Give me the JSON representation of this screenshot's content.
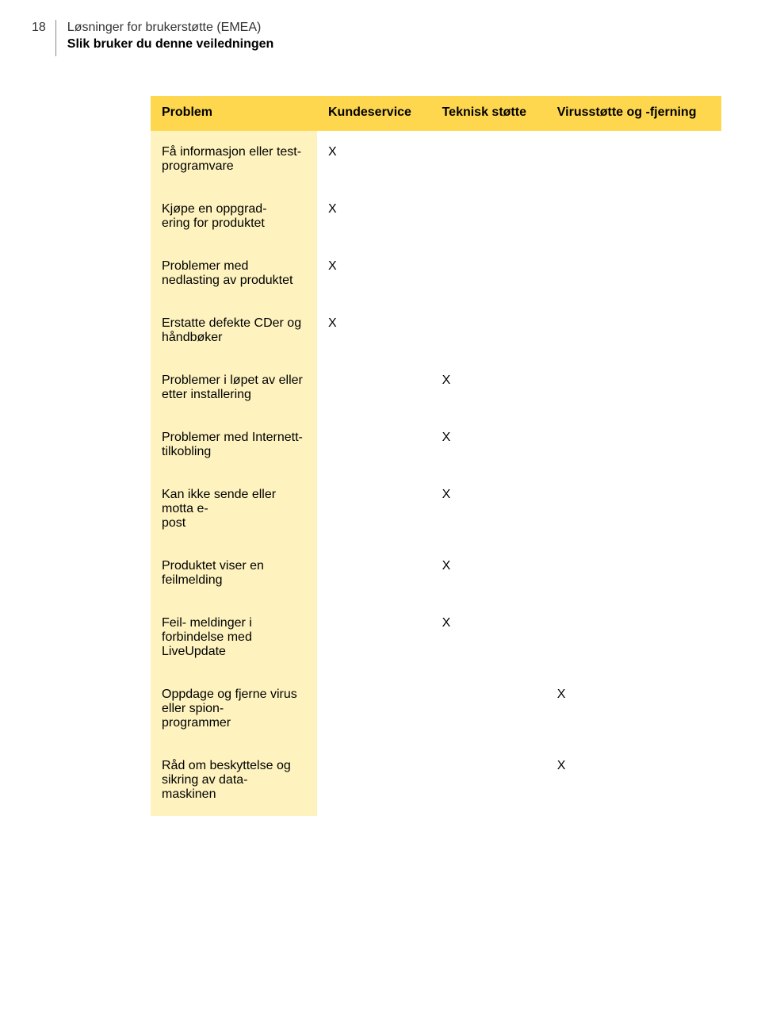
{
  "page_number": "18",
  "header_title": "Løsninger for brukerstøtte (EMEA)",
  "header_subtitle": "Slik bruker du denne veiledningen",
  "colors": {
    "header_bg": "#fed74f",
    "body_bg": "#fef3bf",
    "mark_bg": "#ffffff",
    "page_bg": "#ffffff",
    "text": "#000000"
  },
  "table": {
    "columns": [
      "Problem",
      "Kundeservice",
      "Teknisk støtte",
      "Virusstøtte og -fjerning"
    ],
    "rows": [
      {
        "problem": "Få informasjon eller test-programvare",
        "k": "X",
        "t": "",
        "v": ""
      },
      {
        "problem": "Kjøpe en oppgrad-ering for produktet",
        "k": "X",
        "t": "",
        "v": ""
      },
      {
        "problem": "Problemer med nedlasting av produktet",
        "k": "X",
        "t": "",
        "v": ""
      },
      {
        "problem": "Erstatte defekte CDer og håndbøker",
        "k": "X",
        "t": "",
        "v": ""
      },
      {
        "problem": "Problemer i løpet av eller etter installering",
        "k": "",
        "t": "X",
        "v": ""
      },
      {
        "problem": "Problemer med Internett-tilkobling",
        "k": "",
        "t": "X",
        "v": ""
      },
      {
        "problem": "Kan ikke sende eller motta e-post",
        "k": "",
        "t": "X",
        "v": ""
      },
      {
        "problem": "Produktet viser en feilmelding",
        "k": "",
        "t": "X",
        "v": ""
      },
      {
        "problem": "Feil- meldinger i forbindelse med LiveUpdate",
        "k": "",
        "t": "X",
        "v": ""
      },
      {
        "problem": "Oppdage og fjerne virus eller spion-programmer",
        "k": "",
        "t": "",
        "v": "X"
      },
      {
        "problem": "Råd om beskyttelse og sikring av data-maskinen",
        "k": "",
        "t": "",
        "v": "X"
      }
    ]
  }
}
